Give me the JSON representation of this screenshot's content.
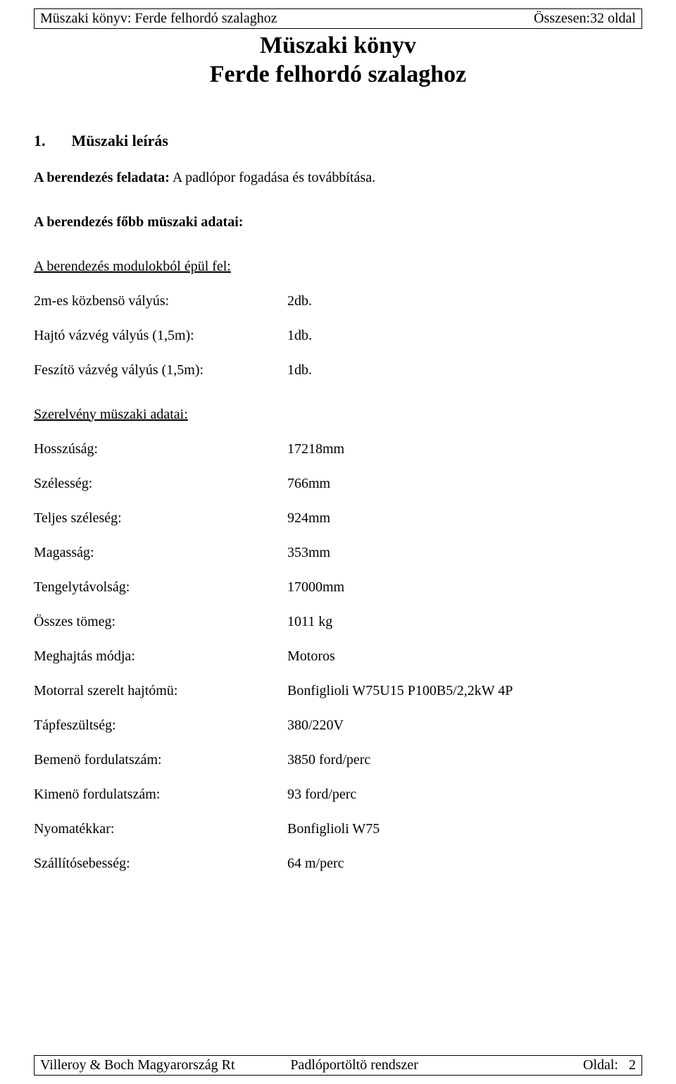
{
  "header": {
    "left": "Müszaki könyv: Ferde felhordó szalaghoz",
    "right_label": "Összesen:",
    "right_value": "32 oldal"
  },
  "title_line1": "Müszaki könyv",
  "title_line2": "Ferde felhordó szalaghoz",
  "section": {
    "number": "1.",
    "title": "Müszaki leírás"
  },
  "task_label": "A berendezés feladata:",
  "task_text": " A padlópor fogadása és továbbítása.",
  "main_data_heading": "A berendezés főbb müszaki adatai:",
  "modules_heading": "A berendezés modulokból épül fel:",
  "modules": [
    {
      "label": "2m-es közbensö vályús:",
      "value": "2db."
    },
    {
      "label": "Hajtó vázvég vályús (1,5m):",
      "value": "1db."
    },
    {
      "label": "Feszítö vázvég vályús (1,5m):",
      "value": "1db."
    }
  ],
  "assembly_heading": "Szerelvény müszaki adatai:",
  "specs": [
    {
      "label": "Hosszúság:",
      "value": "17218mm"
    },
    {
      "label": "Szélesség:",
      "value": "766mm"
    },
    {
      "label": "Teljes széleség:",
      "value": "924mm"
    },
    {
      "label": "Magasság:",
      "value": "353mm"
    },
    {
      "label": "Tengelytávolság:",
      "value": "17000mm"
    },
    {
      "label": "Összes tömeg:",
      "value": "1011 kg"
    },
    {
      "label": "Meghajtás módja:",
      "value": "Motoros"
    },
    {
      "label": "Motorral szerelt hajtómü:",
      "value": "Bonfiglioli W75U15 P100B5/2,2kW 4P"
    },
    {
      "label": "Tápfeszültség:",
      "value": "380/220V"
    },
    {
      "label": "Bemenö fordulatszám:",
      "value": "3850 ford/perc"
    },
    {
      "label": "Kimenö fordulatszám:",
      "value": "93 ford/perc"
    },
    {
      "label": "Nyomatékkar:",
      "value": "Bonfiglioli W75"
    },
    {
      "label": "Szállítósebesség:",
      "value": "64 m/perc"
    }
  ],
  "footer": {
    "left": "Villeroy & Boch Magyarország Rt",
    "center": "Padlóportöltö rendszer",
    "right_label": "Oldal:",
    "right_value": "2"
  }
}
